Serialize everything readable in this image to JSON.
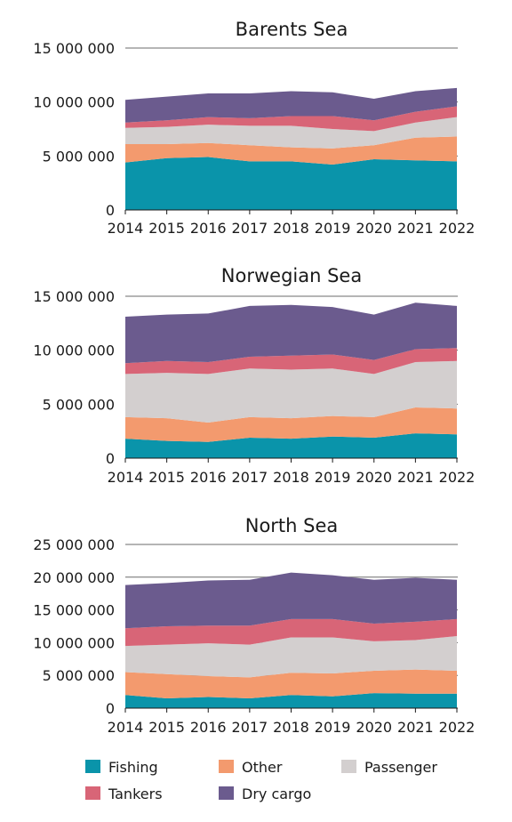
{
  "colors": {
    "Fishing": "#0a94aa",
    "Other": "#f39a6e",
    "Passenger": "#d3cfcf",
    "Tankers": "#d86577",
    "Dry cargo": "#6b5b8e"
  },
  "chart_data": [
    {
      "type": "area",
      "stacked": true,
      "title": "Barents Sea",
      "x": [
        2014,
        2015,
        2016,
        2017,
        2018,
        2019,
        2020,
        2021,
        2022
      ],
      "ylim": [
        0,
        15000000
      ],
      "yticks": [
        "0",
        "5 000 000",
        "10 000 000",
        "15 000 000"
      ],
      "series": [
        {
          "name": "Fishing",
          "values": [
            4400000,
            4800000,
            4900000,
            4500000,
            4500000,
            4200000,
            4700000,
            4600000,
            4500000
          ]
        },
        {
          "name": "Other",
          "values": [
            1700000,
            1300000,
            1300000,
            1500000,
            1300000,
            1500000,
            1300000,
            2100000,
            2300000
          ]
        },
        {
          "name": "Passenger",
          "values": [
            1500000,
            1600000,
            1700000,
            1800000,
            2000000,
            1800000,
            1300000,
            1400000,
            1800000
          ]
        },
        {
          "name": "Tankers",
          "values": [
            500000,
            600000,
            700000,
            700000,
            900000,
            1200000,
            1000000,
            1000000,
            1000000
          ]
        },
        {
          "name": "Dry cargo",
          "values": [
            2100000,
            2200000,
            2200000,
            2300000,
            2300000,
            2200000,
            2000000,
            1900000,
            1700000
          ]
        }
      ]
    },
    {
      "type": "area",
      "stacked": true,
      "title": "Norwegian Sea",
      "x": [
        2014,
        2015,
        2016,
        2017,
        2018,
        2019,
        2020,
        2021,
        2022
      ],
      "ylim": [
        0,
        15000000
      ],
      "yticks": [
        "0",
        "5 000 000",
        "10 000 000",
        "15 000 000"
      ],
      "series": [
        {
          "name": "Fishing",
          "values": [
            1800000,
            1600000,
            1500000,
            1900000,
            1800000,
            2000000,
            1900000,
            2300000,
            2200000
          ]
        },
        {
          "name": "Other",
          "values": [
            2000000,
            2100000,
            1800000,
            1900000,
            1900000,
            1900000,
            1900000,
            2400000,
            2400000
          ]
        },
        {
          "name": "Passenger",
          "values": [
            4000000,
            4200000,
            4500000,
            4500000,
            4500000,
            4400000,
            4000000,
            4200000,
            4400000
          ]
        },
        {
          "name": "Tankers",
          "values": [
            1000000,
            1100000,
            1100000,
            1100000,
            1300000,
            1300000,
            1300000,
            1200000,
            1200000
          ]
        },
        {
          "name": "Dry cargo",
          "values": [
            4300000,
            4300000,
            4500000,
            4700000,
            4700000,
            4400000,
            4200000,
            4300000,
            3900000
          ]
        }
      ]
    },
    {
      "type": "area",
      "stacked": true,
      "title": "North Sea",
      "x": [
        2014,
        2015,
        2016,
        2017,
        2018,
        2019,
        2020,
        2021,
        2022
      ],
      "ylim": [
        0,
        25000000
      ],
      "yticks": [
        "0",
        "5 000 000",
        "10 000 000",
        "15 000 000",
        "20 000 000",
        "25 000 000"
      ],
      "series": [
        {
          "name": "Fishing",
          "values": [
            2000000,
            1500000,
            1700000,
            1500000,
            2000000,
            1800000,
            2300000,
            2200000,
            2200000
          ]
        },
        {
          "name": "Other",
          "values": [
            3500000,
            3700000,
            3200000,
            3200000,
            3400000,
            3500000,
            3400000,
            3700000,
            3500000
          ]
        },
        {
          "name": "Passenger",
          "values": [
            4000000,
            4500000,
            5000000,
            5000000,
            5400000,
            5500000,
            4500000,
            4500000,
            5300000
          ]
        },
        {
          "name": "Tankers",
          "values": [
            2700000,
            2800000,
            2700000,
            2900000,
            2800000,
            2800000,
            2700000,
            2800000,
            2600000
          ]
        },
        {
          "name": "Dry cargo",
          "values": [
            6600000,
            6600000,
            6900000,
            7000000,
            7100000,
            6700000,
            6700000,
            6700000,
            6000000
          ]
        }
      ]
    }
  ],
  "legend": [
    "Fishing",
    "Other",
    "Passenger",
    "Tankers",
    "Dry cargo"
  ]
}
